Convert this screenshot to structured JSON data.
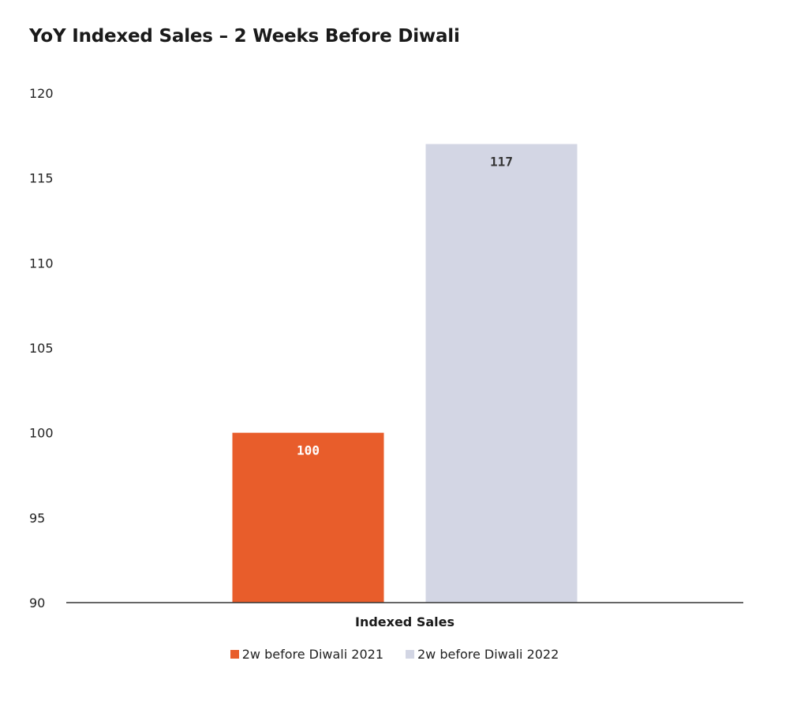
{
  "chart_data": {
    "type": "bar",
    "title": "YoY Indexed Sales – 2 Weeks Before Diwali",
    "xlabel": "",
    "ylabel": "",
    "categories": [
      "Indexed Sales"
    ],
    "series": [
      {
        "name": "2w before Diwali 2021",
        "values": [
          100
        ],
        "color": "#E85D2B",
        "label_color": "#ffffff"
      },
      {
        "name": "2w before Diwali 2022",
        "values": [
          117
        ],
        "color": "#D3D6E4",
        "label_color": "#333333"
      }
    ],
    "ylim": [
      90,
      120
    ],
    "yticks": [
      90,
      95,
      100,
      105,
      110,
      115,
      120
    ],
    "grid": false,
    "legend": "bottom",
    "data_labels": true
  }
}
